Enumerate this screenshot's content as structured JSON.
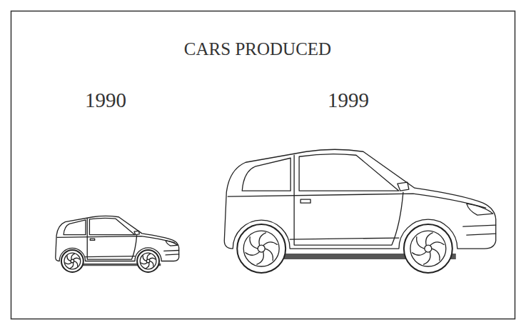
{
  "chart_data": {
    "type": "pictogram",
    "title": "CARS PRODUCED",
    "categories": [
      "1990",
      "1999"
    ],
    "values": [
      1,
      2.2
    ]
  }
}
